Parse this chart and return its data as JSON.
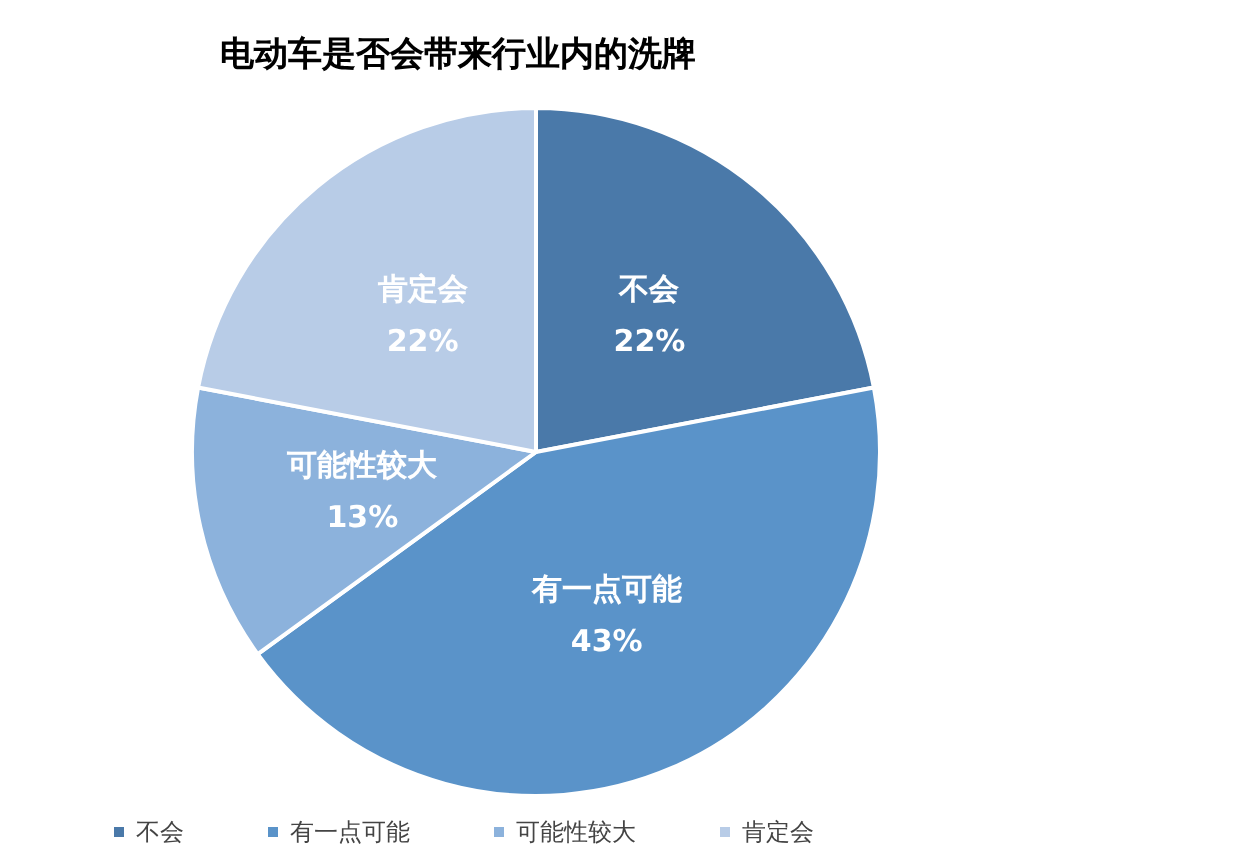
{
  "chart_data": {
    "type": "pie",
    "title": "电动车是否会带来行业内的洗牌",
    "categories": [
      "不会",
      "有一点可能",
      "可能性较大",
      "肯定会"
    ],
    "values": [
      22,
      43,
      13,
      22
    ],
    "colors": [
      "#4a79a9",
      "#5a93c9",
      "#8cb2dc",
      "#b8cce7"
    ],
    "value_labels": [
      "22%",
      "43%",
      "13%",
      "22%"
    ],
    "legend": "bottom"
  }
}
